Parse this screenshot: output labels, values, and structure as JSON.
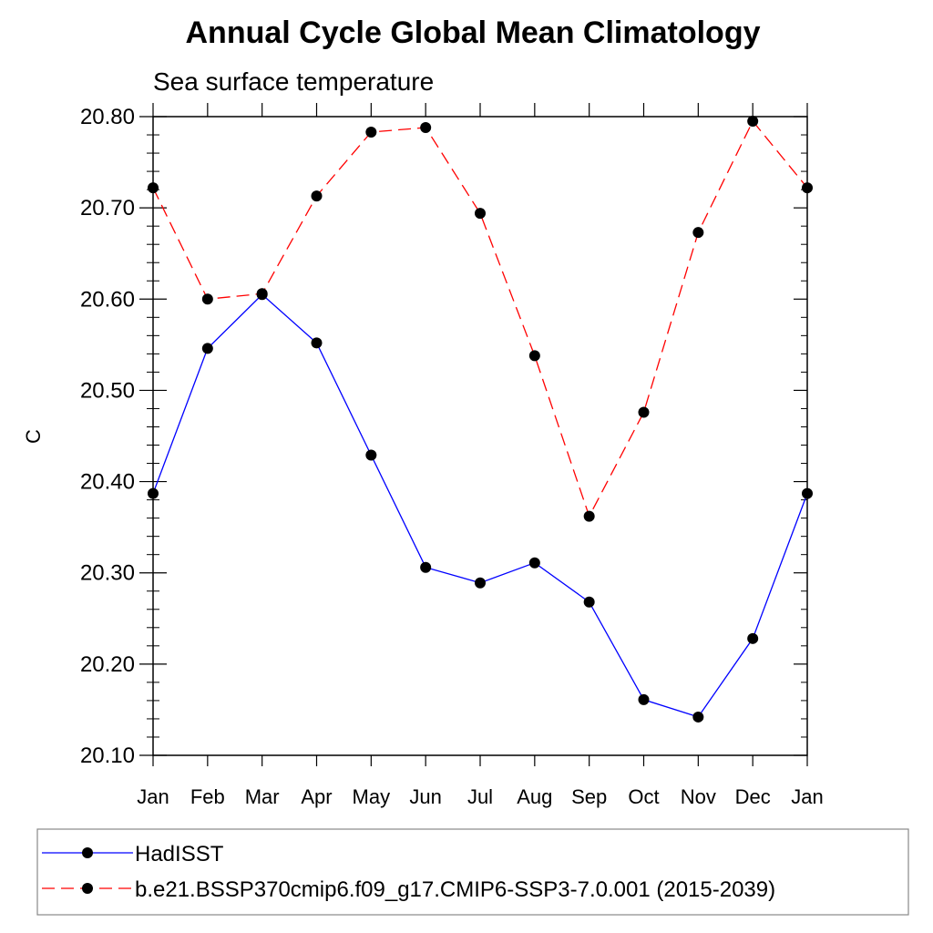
{
  "chart_data": {
    "type": "line",
    "title": "Annual Cycle Global Mean Climatology",
    "subtitle": "Sea surface temperature",
    "xlabel": "",
    "ylabel": "C",
    "categories": [
      "Jan",
      "Feb",
      "Mar",
      "Apr",
      "May",
      "Jun",
      "Jul",
      "Aug",
      "Sep",
      "Oct",
      "Nov",
      "Dec",
      "Jan"
    ],
    "ylim": [
      20.1,
      20.8
    ],
    "yticks": [
      "20.10",
      "20.20",
      "20.30",
      "20.40",
      "20.50",
      "20.60",
      "20.70",
      "20.80"
    ],
    "legend_position": "bottom",
    "series": [
      {
        "name": "HadISST",
        "color": "#0000ff",
        "line_style": "solid",
        "marker": "filled-circle",
        "values": [
          20.387,
          20.546,
          20.605,
          20.552,
          20.429,
          20.306,
          20.289,
          20.311,
          20.268,
          20.161,
          20.142,
          20.228,
          20.387
        ]
      },
      {
        "name": "b.e21.BSSP370cmip6.f09_g17.CMIP6-SSP3-7.0.001 (2015-2039)",
        "color": "#ff0000",
        "line_style": "dashed",
        "marker": "filled-circle",
        "values": [
          20.722,
          20.6,
          20.606,
          20.713,
          20.783,
          20.788,
          20.694,
          20.538,
          20.362,
          20.476,
          20.673,
          20.795,
          20.722
        ]
      }
    ]
  }
}
